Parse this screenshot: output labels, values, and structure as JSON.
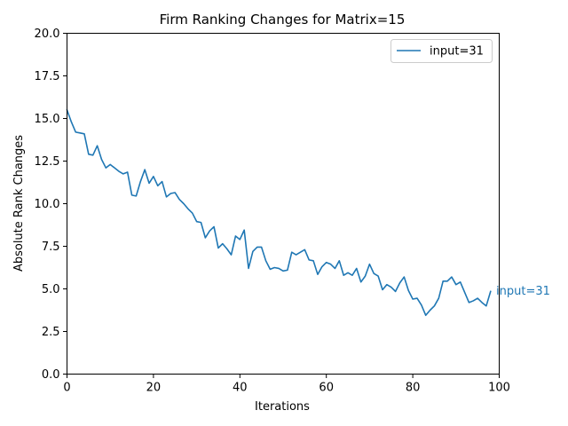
{
  "chart_data": {
    "type": "line",
    "title": "Firm Ranking Changes for Matrix=15",
    "xlabel": "Iterations",
    "ylabel": "Absolute Rank Changes",
    "xlim": [
      0,
      100
    ],
    "ylim": [
      0,
      20
    ],
    "xticks": [
      0,
      20,
      40,
      60,
      80,
      100
    ],
    "xtick_labels": [
      "0",
      "20",
      "40",
      "60",
      "80",
      "100"
    ],
    "yticks": [
      0,
      2.5,
      5,
      7.5,
      10,
      12.5,
      15,
      17.5,
      20
    ],
    "ytick_labels": [
      "0.0",
      "2.5",
      "5.0",
      "7.5",
      "10.0",
      "12.5",
      "15.0",
      "17.5",
      "20.0"
    ],
    "grid": false,
    "legend_position": "top-right",
    "colors": {
      "series": "#1f77b4"
    },
    "end_label": "input=31",
    "series": [
      {
        "name": "input=31",
        "x": [
          0,
          1,
          2,
          3,
          4,
          5,
          6,
          7,
          8,
          9,
          10,
          11,
          12,
          13,
          14,
          15,
          16,
          17,
          18,
          19,
          20,
          21,
          22,
          23,
          24,
          25,
          26,
          27,
          28,
          29,
          30,
          31,
          32,
          33,
          34,
          35,
          36,
          37,
          38,
          39,
          40,
          41,
          42,
          43,
          44,
          45,
          46,
          47,
          48,
          49,
          50,
          51,
          52,
          53,
          54,
          55,
          56,
          57,
          58,
          59,
          60,
          61,
          62,
          63,
          64,
          65,
          66,
          67,
          68,
          69,
          70,
          71,
          72,
          73,
          74,
          75,
          76,
          77,
          78,
          79,
          80,
          81,
          82,
          83,
          84,
          85,
          86,
          87,
          88,
          89,
          90,
          91,
          92,
          93,
          94,
          95,
          96,
          97,
          98
        ],
        "y": [
          15.5,
          14.8,
          14.2,
          14.15,
          14.1,
          12.9,
          12.85,
          13.4,
          12.6,
          12.1,
          12.3,
          12.1,
          11.9,
          11.75,
          11.85,
          10.5,
          10.45,
          11.3,
          12.0,
          11.2,
          11.6,
          11.05,
          11.3,
          10.4,
          10.6,
          10.65,
          10.25,
          10.0,
          9.7,
          9.45,
          8.95,
          8.9,
          8.0,
          8.4,
          8.65,
          7.4,
          7.65,
          7.35,
          7.0,
          8.1,
          7.9,
          8.45,
          6.2,
          7.2,
          7.45,
          7.45,
          6.65,
          6.15,
          6.25,
          6.2,
          6.05,
          6.1,
          7.15,
          7.0,
          7.15,
          7.3,
          6.7,
          6.65,
          5.85,
          6.3,
          6.55,
          6.45,
          6.2,
          6.65,
          5.8,
          5.95,
          5.8,
          6.2,
          5.4,
          5.75,
          6.45,
          5.9,
          5.75,
          4.95,
          5.25,
          5.1,
          4.85,
          5.35,
          5.7,
          4.9,
          4.4,
          4.45,
          4.05,
          3.45,
          3.75,
          4.0,
          4.45,
          5.45,
          5.45,
          5.7,
          5.25,
          5.4,
          4.8,
          4.2,
          4.3,
          4.45,
          4.2,
          4.0,
          4.85
        ]
      }
    ]
  }
}
